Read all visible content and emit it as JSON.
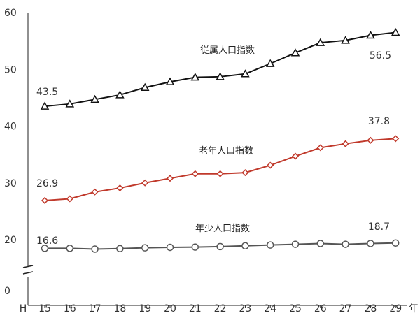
{
  "chart_data": {
    "type": "line",
    "title": "",
    "xlabel": "年",
    "ylabel": "",
    "x": [
      "15",
      "16",
      "17",
      "18",
      "19",
      "20",
      "21",
      "22",
      "23",
      "24",
      "25",
      "26",
      "27",
      "28",
      "29"
    ],
    "x_prefix": "H",
    "y_ticks": [
      "0",
      "20",
      "30",
      "40",
      "50",
      "60"
    ],
    "ylim": [
      0,
      60
    ],
    "y_axis_break": true,
    "grid": false,
    "series": [
      {
        "name": "従属人口指数",
        "marker": "triangle",
        "color": "#111111",
        "values": [
          43.5,
          43.9,
          44.7,
          45.5,
          46.8,
          47.8,
          48.6,
          48.7,
          49.2,
          51.0,
          52.9,
          54.7,
          55.1,
          56.0,
          56.5
        ],
        "start_label": "43.5",
        "end_label": "56.5"
      },
      {
        "name": "老年人口指数",
        "marker": "diamond",
        "color": "#c0392b",
        "values": [
          26.9,
          27.2,
          28.4,
          29.1,
          30.0,
          30.8,
          31.6,
          31.6,
          31.8,
          33.1,
          34.7,
          36.2,
          36.9,
          37.5,
          37.8
        ],
        "start_label": "26.9",
        "end_label": "37.8"
      },
      {
        "name": "年少人口指数",
        "marker": "circle",
        "color": "#555555",
        "values": [
          16.6,
          16.6,
          16.3,
          16.5,
          16.8,
          17.0,
          17.1,
          17.3,
          17.6,
          17.9,
          18.2,
          18.5,
          18.2,
          18.5,
          18.7
        ],
        "start_label": "16.6",
        "end_label": "18.7"
      }
    ]
  }
}
